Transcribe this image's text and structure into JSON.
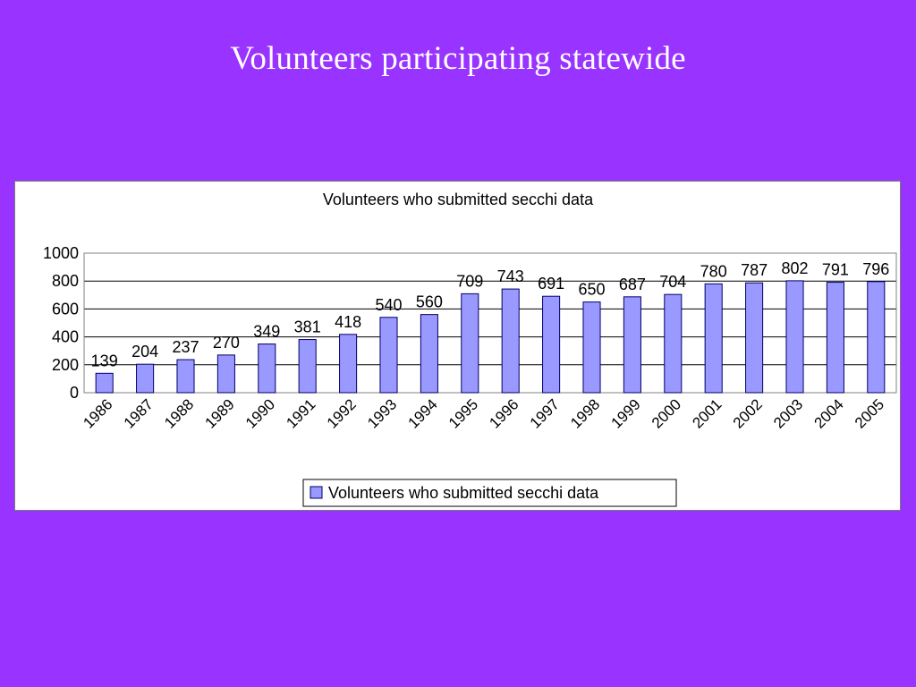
{
  "slide": {
    "title": "Volunteers participating statewide"
  },
  "chart_data": {
    "type": "bar",
    "title": "Volunteers who submitted secchi data",
    "xlabel": "",
    "ylabel": "",
    "categories": [
      "1986",
      "1987",
      "1988",
      "1989",
      "1990",
      "1991",
      "1992",
      "1993",
      "1994",
      "1995",
      "1996",
      "1997",
      "1998",
      "1999",
      "2000",
      "2001",
      "2002",
      "2003",
      "2004",
      "2005"
    ],
    "series": [
      {
        "name": "Volunteers who submitted secchi data",
        "values": [
          139,
          204,
          237,
          270,
          349,
          381,
          418,
          540,
          560,
          709,
          743,
          691,
          650,
          687,
          704,
          780,
          787,
          802,
          791,
          796
        ]
      }
    ],
    "ylim": [
      0,
      1000
    ],
    "yticks": [
      "0",
      "200",
      "400",
      "600",
      "800",
      "1000"
    ],
    "grid": true,
    "legend": "bottom",
    "data_labels": true,
    "bar_color": "#9999ff",
    "bar_edge_color": "#000066"
  }
}
